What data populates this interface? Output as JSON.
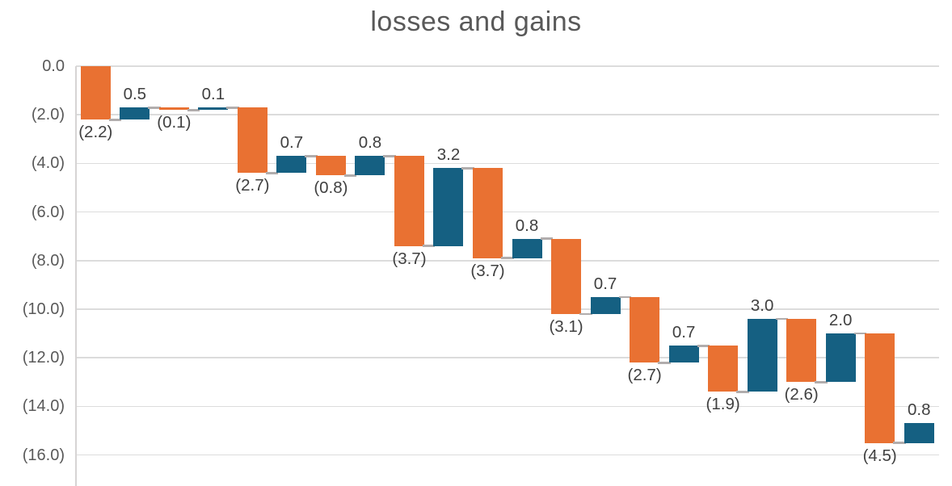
{
  "title": "losses and gains",
  "colors": {
    "loss": "#E97132",
    "gain": "#156082",
    "connector": "#B1ADAD",
    "gridline": "#DCDCDC",
    "axis_line": "#D6D4D4",
    "title_text": "#595959",
    "axis_text": "#595959",
    "label_text": "#404040",
    "background": "#FFFFFF"
  },
  "chart_data": {
    "type": "waterfall",
    "title": "losses and gains",
    "xlabel": "",
    "ylabel": "",
    "grid": true,
    "legend": false,
    "ylim": [
      -17.3,
      0
    ],
    "y_tick_step": 2,
    "y_ticks": [
      "0.0",
      "(2.0)",
      "(4.0)",
      "(6.0)",
      "(8.0)",
      "(10.0)",
      "(12.0)",
      "(14.0)",
      "(16.0)"
    ],
    "y_tick_values": [
      0,
      -2,
      -4,
      -6,
      -8,
      -10,
      -12,
      -14,
      -16
    ],
    "values": [
      -2.2,
      0.5,
      -0.1,
      0.1,
      -2.7,
      0.7,
      -0.8,
      0.8,
      -3.7,
      3.2,
      -3.7,
      0.8,
      -3.1,
      0.7,
      -2.7,
      0.7,
      -1.9,
      3.0,
      -2.6,
      2.0,
      -4.5,
      0.8
    ],
    "labels": [
      "(2.2)",
      "0.5",
      "(0.1)",
      "0.1",
      "(2.7)",
      "0.7",
      "(0.8)",
      "0.8",
      "(3.7)",
      "3.2",
      "(3.7)",
      "0.8",
      "(3.1)",
      "0.7",
      "(2.7)",
      "0.7",
      "(1.9)",
      "3.0",
      "(2.6)",
      "2.0",
      "(4.5)",
      "0.8"
    ],
    "running_totals": [
      -2.2,
      -1.7,
      -1.8,
      -1.7,
      -4.4,
      -3.7,
      -4.5,
      -3.7,
      -7.4,
      -4.2,
      -7.9,
      -7.1,
      -10.2,
      -9.5,
      -12.2,
      -11.5,
      -13.4,
      -10.4,
      -13.0,
      -11.0,
      -15.5,
      -14.7
    ]
  }
}
